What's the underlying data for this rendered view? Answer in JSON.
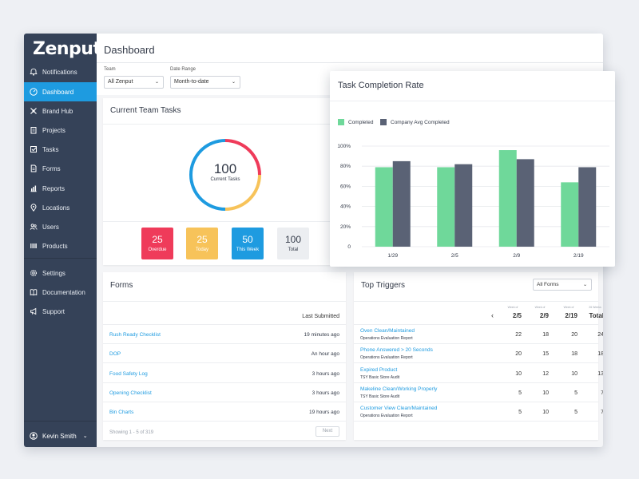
{
  "app": {
    "logo": "Zenput."
  },
  "sidebar": {
    "items": [
      {
        "label": "Notifications",
        "icon": "bell-icon"
      },
      {
        "label": "Dashboard",
        "icon": "gauge-icon",
        "active": true
      },
      {
        "label": "Brand Hub",
        "icon": "hub-icon"
      },
      {
        "label": "Projects",
        "icon": "clipboard-icon"
      },
      {
        "label": "Tasks",
        "icon": "checkbox-icon"
      },
      {
        "label": "Forms",
        "icon": "document-icon"
      },
      {
        "label": "Reports",
        "icon": "bar-chart-icon"
      },
      {
        "label": "Locations",
        "icon": "map-pin-icon"
      },
      {
        "label": "Users",
        "icon": "users-icon"
      },
      {
        "label": "Products",
        "icon": "barcode-icon"
      },
      {
        "label": "Settings",
        "icon": "gear-icon"
      },
      {
        "label": "Documentation",
        "icon": "book-icon"
      },
      {
        "label": "Support",
        "icon": "megaphone-icon"
      }
    ],
    "user": {
      "name": "Kevin Smith"
    }
  },
  "header": {
    "title": "Dashboard",
    "filters": {
      "team_label": "Team",
      "team_value": "All Zenput",
      "date_label": "Date Range",
      "date_value": "Month-to-date"
    }
  },
  "team_tasks": {
    "title": "Current Team Tasks",
    "total_value": "100",
    "total_label": "Current Tasks",
    "tiles": [
      {
        "value": "25",
        "label": "Overdue",
        "color": "#ef3b5a"
      },
      {
        "value": "25",
        "label": "Today",
        "color": "#f7c35a"
      },
      {
        "value": "50",
        "label": "This Week",
        "color": "#1e9be0"
      },
      {
        "value": "100",
        "label": "Total",
        "color": "#eceef1"
      }
    ],
    "donut": [
      {
        "label": "Overdue",
        "value": 25,
        "color": "#ef3b5a"
      },
      {
        "label": "Today",
        "value": 25,
        "color": "#f7c35a"
      },
      {
        "label": "This Week",
        "value": 50,
        "color": "#1e9be0"
      }
    ]
  },
  "forms": {
    "title": "Forms",
    "column_header": "Last Submitted",
    "rows": [
      {
        "name": "Rush Ready Checklist",
        "time": "19 minutes ago"
      },
      {
        "name": "DOP",
        "time": "An  hour ago"
      },
      {
        "name": "Food Safety Log",
        "time": "3 hours ago"
      },
      {
        "name": "Opening Checklist",
        "time": "3 hours ago"
      },
      {
        "name": "Bin Charts",
        "time": "19 hours ago"
      }
    ],
    "showing": "Showing 1 - 5 of 319",
    "next_label": "Next"
  },
  "triggers": {
    "title": "Top Triggers",
    "filter_value": "All Forms",
    "prev_arrow": "‹",
    "columns": [
      {
        "small": "Week of",
        "big": "2/5"
      },
      {
        "small": "Week of",
        "big": "2/9"
      },
      {
        "small": "Week of",
        "big": "2/19"
      },
      {
        "small": "26 Weeks",
        "big": "Total"
      }
    ],
    "rows": [
      {
        "name": "Oven Clean/Maintained",
        "sub": "Operations Evaluation Report",
        "values": [
          "22",
          "18",
          "20",
          "24"
        ]
      },
      {
        "name": "Phone Answered > 20 Seconds",
        "sub": "Operations Evaluation Report",
        "values": [
          "20",
          "15",
          "18",
          "18"
        ]
      },
      {
        "name": "Expired Product",
        "sub": "TSY Basic Store Audit",
        "values": [
          "10",
          "12",
          "10",
          "13"
        ]
      },
      {
        "name": "Makeline Clean/Working Properly",
        "sub": "TSY Basic Store Audit",
        "values": [
          "5",
          "10",
          "5",
          "7"
        ]
      },
      {
        "name": "Customer View Clean/Maintained",
        "sub": "Operations Evaluation Report",
        "values": [
          "5",
          "10",
          "5",
          "7"
        ]
      }
    ]
  },
  "completion_chart": {
    "title": "Task Completion Rate",
    "legend": [
      {
        "name": "Completed",
        "color": "#6fd89a"
      },
      {
        "name": "Company Avg Completed",
        "color": "#5a6275"
      }
    ]
  },
  "chart_data": {
    "type": "bar",
    "title": "Task Completion Rate",
    "categories": [
      "1/29",
      "2/5",
      "2/9",
      "2/19"
    ],
    "series": [
      {
        "name": "Completed",
        "values": [
          79,
          79,
          96,
          64
        ],
        "color": "#6fd89a"
      },
      {
        "name": "Company Avg Completed",
        "values": [
          85,
          82,
          87,
          79
        ],
        "color": "#5a6275"
      }
    ],
    "yticks": [
      "0",
      "20%",
      "40%",
      "60%",
      "80%",
      "100%"
    ],
    "ylim": [
      0,
      100
    ],
    "grid": true,
    "legend_position": "top-left"
  }
}
